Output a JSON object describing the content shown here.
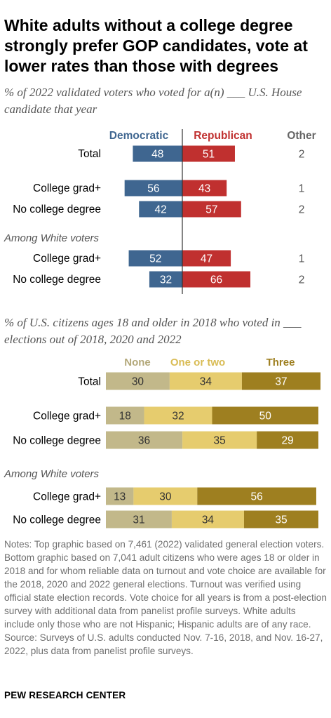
{
  "title": "White adults without a college degree strongly prefer GOP candidates, vote at lower rates than those with degrees",
  "colors": {
    "democratic": "#3f6690",
    "republican": "#c0302f",
    "none": "#c2b88a",
    "one_or_two": "#e6cc6e",
    "three": "#9e7f20",
    "label_gray": "#666666"
  },
  "chart_data": [
    {
      "type": "bar",
      "subtitle": "% of 2022 validated voters who voted for a(n) ___ U.S. House candidate that year",
      "section_label": "Among White voters",
      "columns": [
        "Democratic",
        "Republican",
        "Other"
      ],
      "categories": [
        "Total",
        "College grad+",
        "No college degree",
        "College grad+",
        "No college degree"
      ],
      "series": [
        {
          "name": "Democratic",
          "values": [
            48,
            56,
            42,
            52,
            32
          ]
        },
        {
          "name": "Republican",
          "values": [
            51,
            43,
            57,
            47,
            66
          ]
        },
        {
          "name": "Other",
          "values": [
            2,
            1,
            2,
            1,
            2
          ]
        }
      ]
    },
    {
      "type": "bar",
      "subtitle": "% of U.S. citizens ages 18 and older in 2018 who voted in ___ elections out of 2018, 2020 and 2022",
      "section_label": "Among White voters",
      "columns": [
        "None",
        "One or two",
        "Three"
      ],
      "categories": [
        "Total",
        "College grad+",
        "No college degree",
        "College grad+",
        "No college degree"
      ],
      "series": [
        {
          "name": "None",
          "values": [
            30,
            18,
            36,
            13,
            31
          ]
        },
        {
          "name": "One or two",
          "values": [
            34,
            32,
            35,
            30,
            34
          ]
        },
        {
          "name": "Three",
          "values": [
            37,
            50,
            29,
            56,
            35
          ]
        }
      ]
    }
  ],
  "notes": "Notes: Top graphic based on 7,461 (2022) validated general election voters. Bottom graphic based on 7,041 adult citizens who were ages 18 or older in 2018 and for whom reliable data on turnout and vote choice are available for the 2018, 2020 and 2022 general elections. Turnout was verified using official state election records. Vote choice for all years is from a post-election survey with additional data from panelist profile surveys. White adults include only those who are not Hispanic; Hispanic adults are of any race.",
  "source": "Source: Surveys of U.S. adults conducted Nov. 7-16, 2018, and Nov. 16-27, 2022, plus data from panelist profile surveys.",
  "org": "PEW RESEARCH CENTER"
}
